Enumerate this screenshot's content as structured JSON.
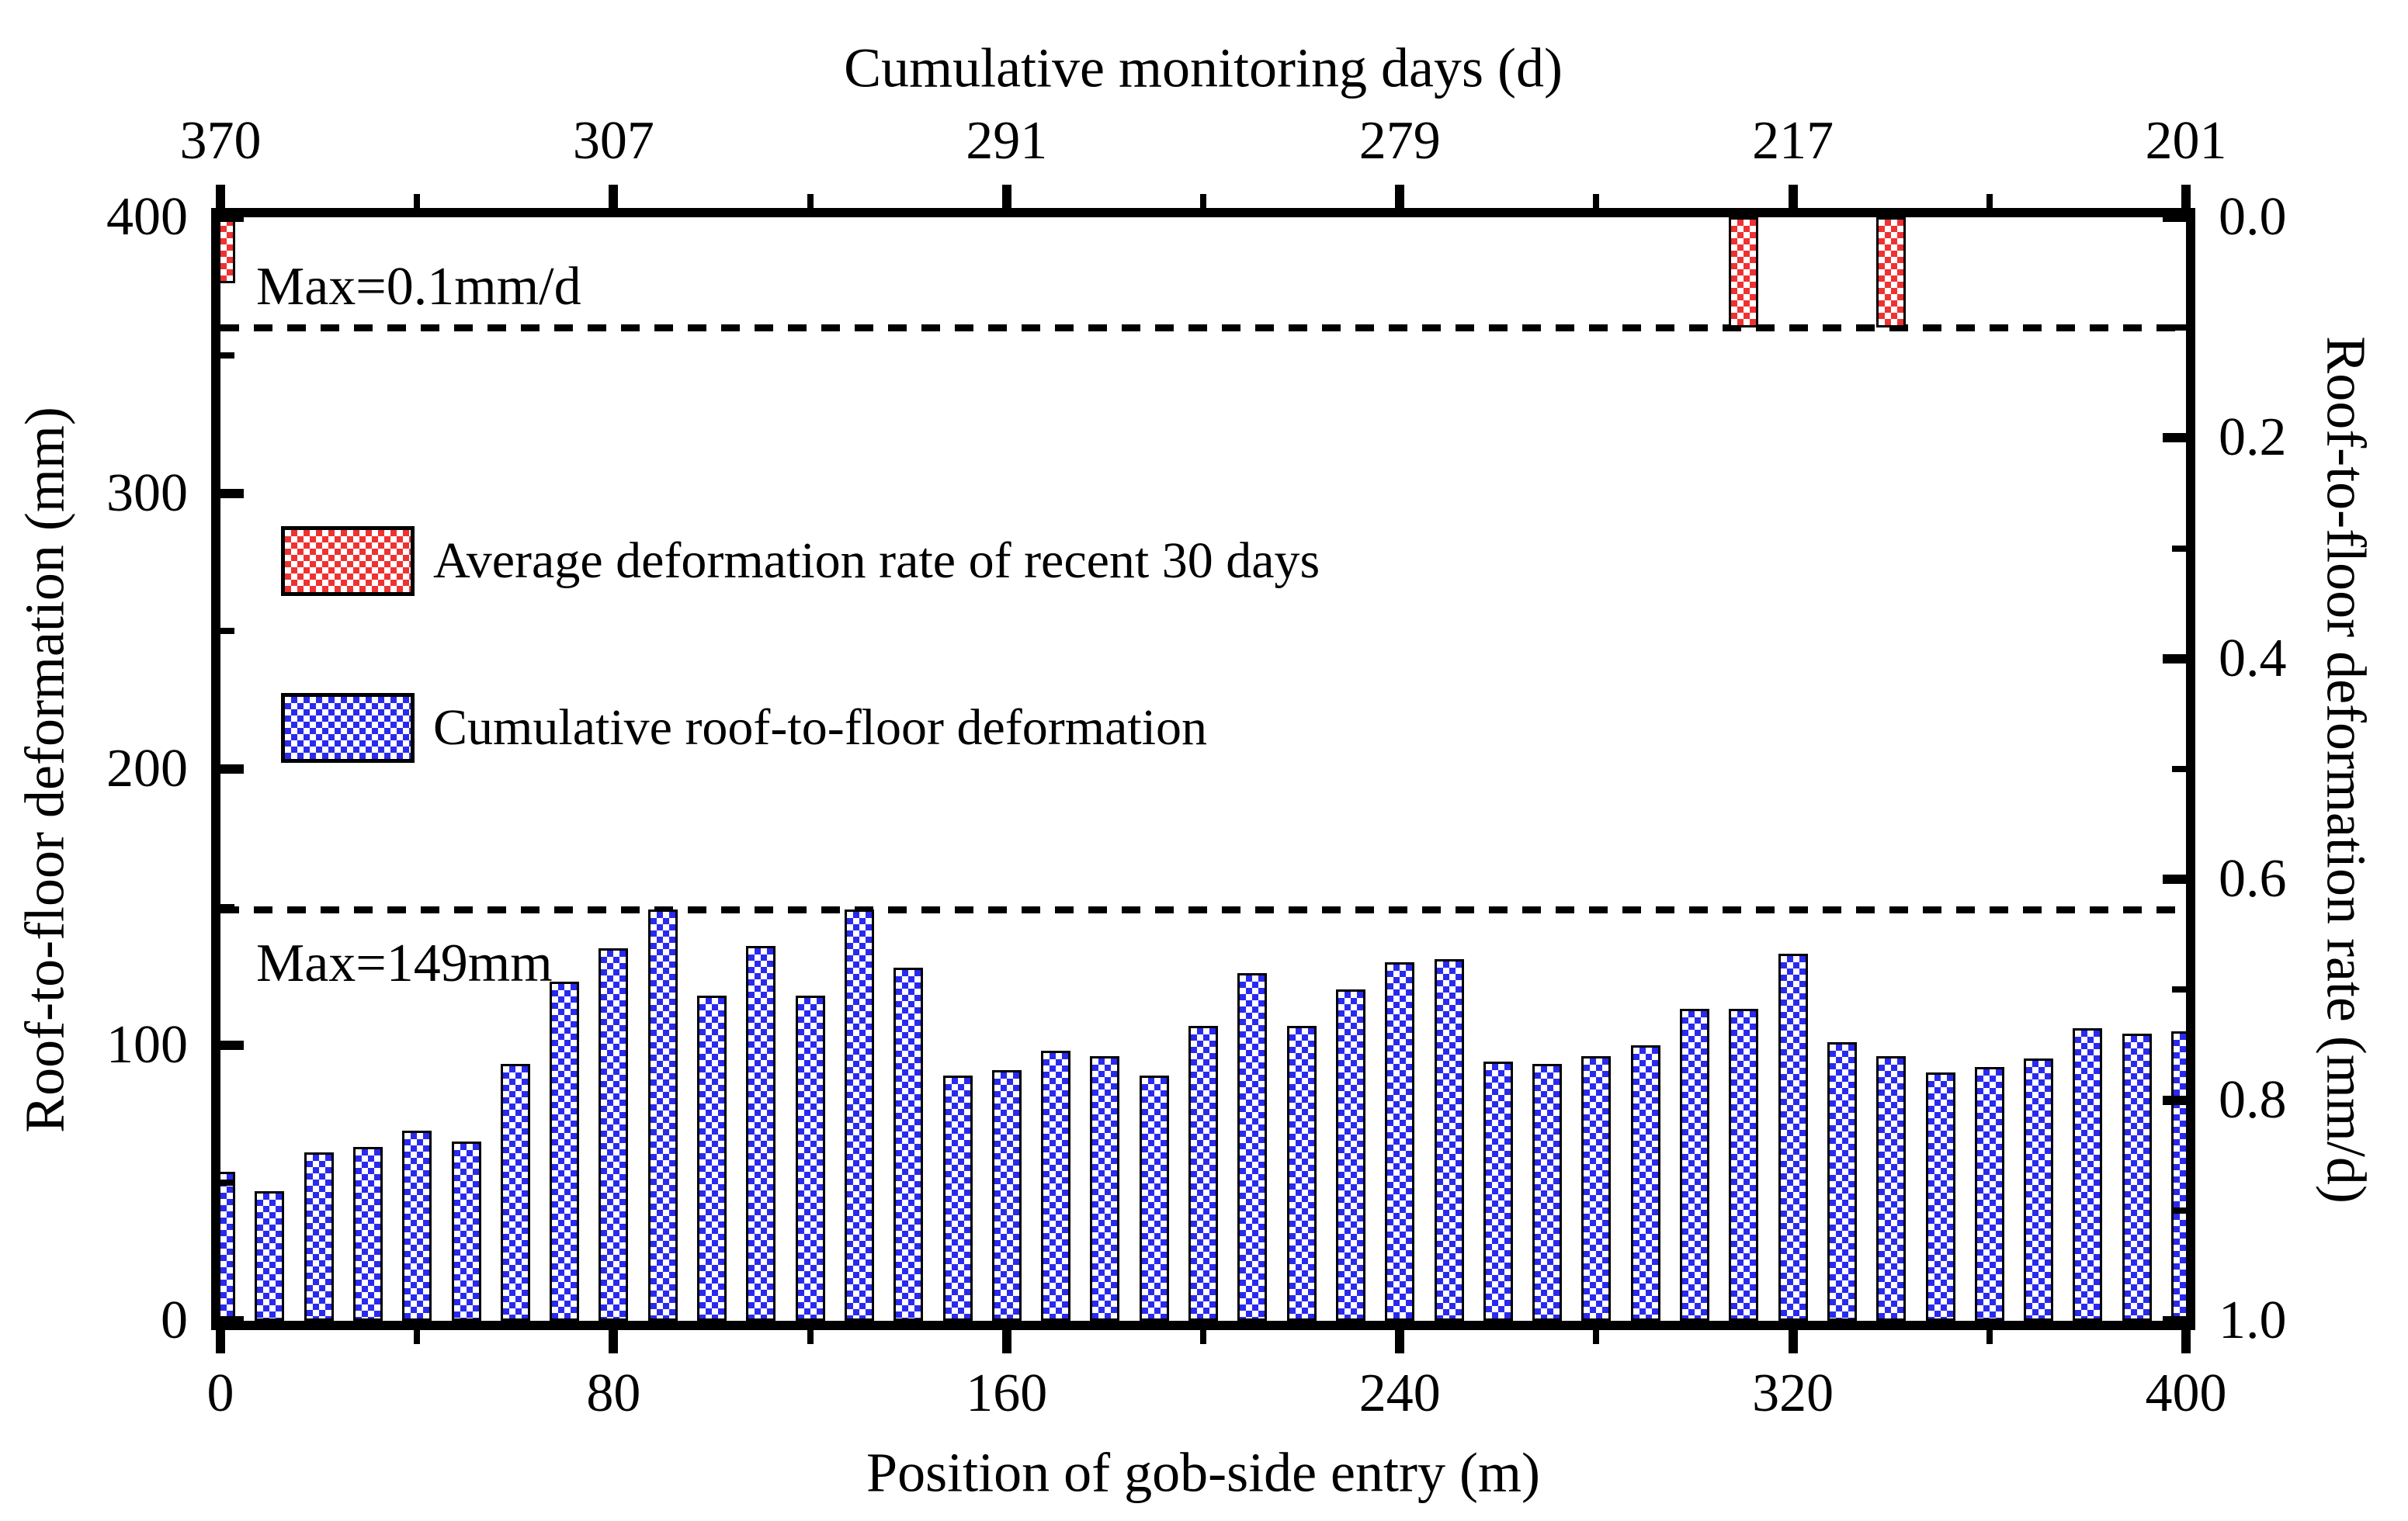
{
  "figure": {
    "top_axis": {
      "title": "Cumulative monitoring days (d)"
    },
    "bottom_axis": {
      "title": "Position of gob-side entry (m)"
    },
    "left_axis": {
      "title": "Roof-to-floor deformation (mm)"
    },
    "right_axis": {
      "title": "Roof-to-floor deformation rate (mm/d)"
    },
    "annotations": {
      "rate_max_label": "Max=0.1mm/d",
      "deform_max_label": "Max=149mm"
    },
    "legend": {
      "items": [
        {
          "swatch": "red-checker",
          "label": "Average deformation rate of recent 30 days"
        },
        {
          "swatch": "blue-checker",
          "label": "Cumulative roof-to-floor deformation"
        }
      ]
    },
    "colors": {
      "bar_blue": "#2a2aee",
      "bar_red": "#ee3232",
      "axis": "#000000",
      "background": "#ffffff"
    }
  },
  "chart_data": {
    "type": "bar",
    "title": "",
    "xlabel": "Position of gob-side entry (m)",
    "ylabel_left": "Roof-to-floor deformation (mm)",
    "ylabel_right": "Roof-to-floor deformation rate (mm/d)",
    "top_axis_title": "Cumulative monitoring days (d)",
    "xlim": [
      0,
      400
    ],
    "ylim_left": [
      0,
      400
    ],
    "ylim_right": [
      0.0,
      1.0
    ],
    "right_axis_inverted": true,
    "grid": false,
    "legend_position": "upper-left-inside",
    "x_step_m": 10,
    "categories_x_m": [
      0,
      10,
      20,
      30,
      40,
      50,
      60,
      70,
      80,
      90,
      100,
      110,
      120,
      130,
      140,
      150,
      160,
      170,
      180,
      190,
      200,
      210,
      220,
      230,
      240,
      250,
      260,
      270,
      280,
      290,
      300,
      310,
      320,
      330,
      340,
      350,
      360,
      370,
      380,
      390,
      400
    ],
    "series": [
      {
        "name": "Cumulative roof-to-floor deformation",
        "axis": "left",
        "unit": "mm",
        "color": "#2a2aee",
        "values": [
          54,
          47,
          61,
          63,
          69,
          65,
          93,
          123,
          135,
          149,
          118,
          136,
          118,
          149,
          128,
          89,
          91,
          98,
          96,
          89,
          107,
          126,
          107,
          120,
          130,
          131,
          94,
          93,
          96,
          100,
          113,
          113,
          133,
          101,
          96,
          90,
          92,
          95,
          106,
          104,
          105
        ]
      },
      {
        "name": "Average deformation rate of recent 30 days",
        "axis": "right",
        "unit": "mm/d",
        "color": "#ee3232",
        "points": [
          {
            "x_m": 0,
            "rate": 0.06
          },
          {
            "x_m": 310,
            "rate": 0.1
          },
          {
            "x_m": 340,
            "rate": 0.1
          }
        ]
      }
    ],
    "bottom_ticks": [
      {
        "x": 0,
        "label": "0"
      },
      {
        "x": 80,
        "label": "80"
      },
      {
        "x": 160,
        "label": "160"
      },
      {
        "x": 240,
        "label": "240"
      },
      {
        "x": 320,
        "label": "320"
      },
      {
        "x": 400,
        "label": "400"
      }
    ],
    "top_ticks": [
      {
        "x": 0,
        "label": "370"
      },
      {
        "x": 80,
        "label": "307"
      },
      {
        "x": 160,
        "label": "291"
      },
      {
        "x": 240,
        "label": "279"
      },
      {
        "x": 320,
        "label": "217"
      },
      {
        "x": 400,
        "label": "201"
      }
    ],
    "left_ticks": [
      {
        "v": 0,
        "label": "0"
      },
      {
        "v": 100,
        "label": "100"
      },
      {
        "v": 200,
        "label": "200"
      },
      {
        "v": 300,
        "label": "300"
      },
      {
        "v": 400,
        "label": "400"
      }
    ],
    "right_ticks": [
      {
        "v": 0.0,
        "label": "0.0"
      },
      {
        "v": 0.2,
        "label": "0.2"
      },
      {
        "v": 0.4,
        "label": "0.4"
      },
      {
        "v": 0.6,
        "label": "0.6"
      },
      {
        "v": 0.8,
        "label": "0.8"
      },
      {
        "v": 1.0,
        "label": "1.0"
      }
    ],
    "minor_ticks_x": [
      40,
      120,
      200,
      280,
      360
    ],
    "minor_ticks_left": [
      50,
      150,
      250,
      350
    ],
    "minor_ticks_right": [
      0.1,
      0.3,
      0.5,
      0.7,
      0.9
    ],
    "reference_lines": [
      {
        "axis": "right",
        "value": 0.1,
        "label": "Max=0.1mm/d"
      },
      {
        "axis": "left",
        "value": 149,
        "label": "Max=149mm"
      }
    ]
  }
}
